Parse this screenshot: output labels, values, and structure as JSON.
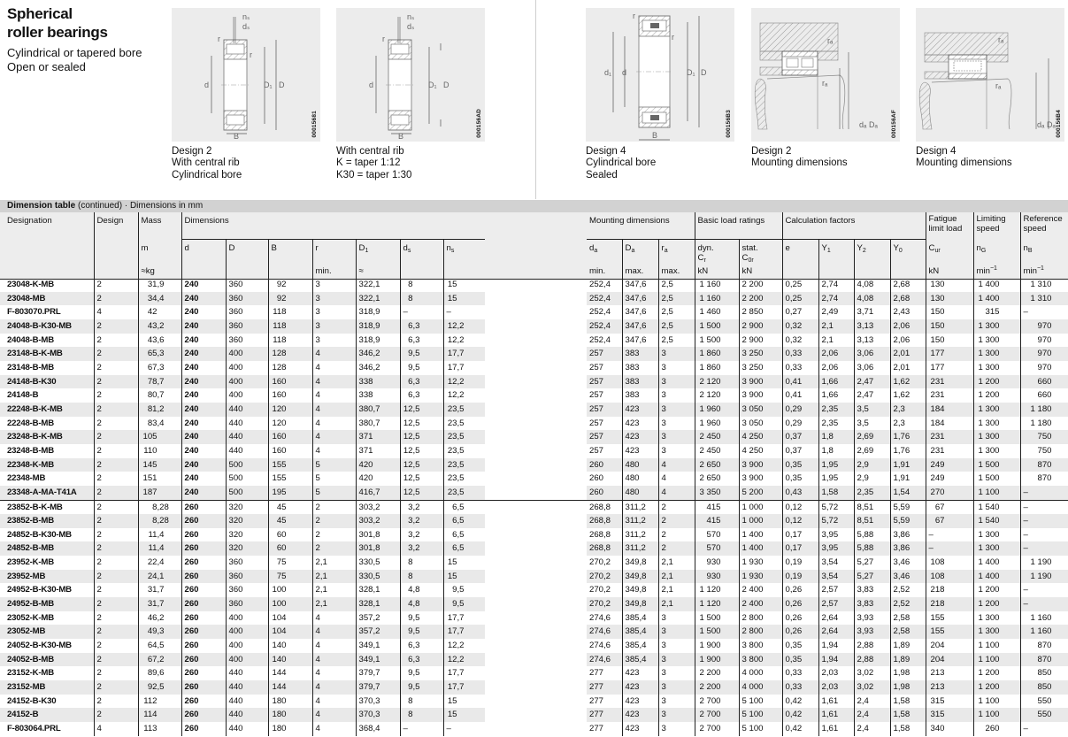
{
  "title": [
    "Spherical",
    "roller bearings"
  ],
  "subtitle": [
    "Cylindrical or tapered bore",
    "Open or sealed"
  ],
  "figures": [
    {
      "code": "00015681",
      "caption": [
        "Design 2",
        "With central rib",
        "Cylindrical bore"
      ],
      "labels": {
        "ns": "nₛ",
        "ds": "dₛ",
        "r": "r",
        "d": "d",
        "D1": "D₁",
        "D": "D",
        "B": "B"
      }
    },
    {
      "code": "000156AD",
      "caption": [
        "With central rib",
        "K = taper 1:12",
        "K30 = taper 1:30"
      ],
      "labels": {
        "ns": "nₛ",
        "ds": "dₛ",
        "r": "r",
        "d": "d",
        "D1": "D₁",
        "D": "D",
        "B": "B"
      }
    },
    {
      "code": "000156B3",
      "caption": [
        "Design 4",
        "Cylindrical bore",
        "Sealed"
      ],
      "labels": {
        "r": "r",
        "d1": "d₁",
        "d": "d",
        "D1": "D₁",
        "D": "D",
        "B": "B"
      }
    },
    {
      "code": "000156AF",
      "caption": [
        "Design 2",
        "Mounting dimensions"
      ],
      "labels": {
        "ra": "rₐ",
        "da": "dₐ",
        "Da": "Dₐ"
      }
    },
    {
      "code": "000156B4",
      "caption": [
        "Design 4",
        "Mounting dimensions"
      ],
      "labels": {
        "ra": "rₐ",
        "da": "dₐ",
        "Da": "Dₐ"
      }
    }
  ],
  "table_title": {
    "bold": "Dimension table",
    "rest": " (continued) · Dimensions in mm"
  },
  "header": {
    "designation": "Designation",
    "design": "Design",
    "mass": "Mass",
    "mass_sym": "m",
    "mass_unit": "≈kg",
    "dimensions": "Dimensions",
    "d": "d",
    "D": "D",
    "B": "B",
    "r": "r",
    "r_unit": "min.",
    "D1": {
      "m": "D",
      "s": "1"
    },
    "D1_unit": "≈",
    "ds": {
      "m": "d",
      "s": "s"
    },
    "ns": {
      "m": "n",
      "s": "s"
    },
    "mounting": "Mounting dimensions",
    "da": {
      "m": "d",
      "s": "a"
    },
    "da_unit": "min.",
    "Da": {
      "m": "D",
      "s": "a"
    },
    "Da_unit": "max.",
    "ra": {
      "m": "r",
      "s": "a"
    },
    "ra_unit": "max.",
    "load": "Basic load ratings",
    "dyn": "dyn.",
    "Cr": {
      "m": "C",
      "s": "r"
    },
    "stat": "stat.",
    "C0r": {
      "m": "C",
      "s": "0r"
    },
    "kN": "kN",
    "calc": "Calculation factors",
    "e": "e",
    "Y1": {
      "m": "Y",
      "s": "1"
    },
    "Y2": {
      "m": "Y",
      "s": "2"
    },
    "Y0": {
      "m": "Y",
      "s": "0"
    },
    "fatigue": "Fatigue limit load",
    "Cur": {
      "m": "C",
      "s": "ur"
    },
    "limiting": "Limiting speed",
    "nG": {
      "m": "n",
      "s": "G"
    },
    "reference": "Reference speed",
    "nB": {
      "m": "n",
      "s": "B"
    },
    "min_unit": {
      "m": "min",
      "s": "−1"
    }
  },
  "rows": [
    [
      "23048-K-MB",
      "2",
      "31,9",
      "240",
      "360",
      "92",
      "3",
      "322,1",
      "8",
      "15",
      "252,4",
      "347,6",
      "2,5",
      "1 160",
      "2 200",
      "0,25",
      "2,74",
      "4,08",
      "2,68",
      "130",
      "1 400",
      "1 310"
    ],
    [
      "23048-MB",
      "2",
      "34,4",
      "240",
      "360",
      "92",
      "3",
      "322,1",
      "8",
      "15",
      "252,4",
      "347,6",
      "2,5",
      "1 160",
      "2 200",
      "0,25",
      "2,74",
      "4,08",
      "2,68",
      "130",
      "1 400",
      "1 310"
    ],
    [
      "F-803070.PRL",
      "4",
      "42",
      "240",
      "360",
      "118",
      "3",
      "318,9",
      "–",
      "–",
      "252,4",
      "347,6",
      "2,5",
      "1 460",
      "2 850",
      "0,27",
      "2,49",
      "3,71",
      "2,43",
      "150",
      "315",
      "–"
    ],
    [
      "24048-B-K30-MB",
      "2",
      "43,2",
      "240",
      "360",
      "118",
      "3",
      "318,9",
      "6,3",
      "12,2",
      "252,4",
      "347,6",
      "2,5",
      "1 500",
      "2 900",
      "0,32",
      "2,1",
      "3,13",
      "2,06",
      "150",
      "1 300",
      "970"
    ],
    [
      "24048-B-MB",
      "2",
      "43,6",
      "240",
      "360",
      "118",
      "3",
      "318,9",
      "6,3",
      "12,2",
      "252,4",
      "347,6",
      "2,5",
      "1 500",
      "2 900",
      "0,32",
      "2,1",
      "3,13",
      "2,06",
      "150",
      "1 300",
      "970"
    ],
    [
      "23148-B-K-MB",
      "2",
      "65,3",
      "240",
      "400",
      "128",
      "4",
      "346,2",
      "9,5",
      "17,7",
      "257",
      "383",
      "3",
      "1 860",
      "3 250",
      "0,33",
      "2,06",
      "3,06",
      "2,01",
      "177",
      "1 300",
      "970"
    ],
    [
      "23148-B-MB",
      "2",
      "67,3",
      "240",
      "400",
      "128",
      "4",
      "346,2",
      "9,5",
      "17,7",
      "257",
      "383",
      "3",
      "1 860",
      "3 250",
      "0,33",
      "2,06",
      "3,06",
      "2,01",
      "177",
      "1 300",
      "970"
    ],
    [
      "24148-B-K30",
      "2",
      "78,7",
      "240",
      "400",
      "160",
      "4",
      "338",
      "6,3",
      "12,2",
      "257",
      "383",
      "3",
      "2 120",
      "3 900",
      "0,41",
      "1,66",
      "2,47",
      "1,62",
      "231",
      "1 200",
      "660"
    ],
    [
      "24148-B",
      "2",
      "80,7",
      "240",
      "400",
      "160",
      "4",
      "338",
      "6,3",
      "12,2",
      "257",
      "383",
      "3",
      "2 120",
      "3 900",
      "0,41",
      "1,66",
      "2,47",
      "1,62",
      "231",
      "1 200",
      "660"
    ],
    [
      "22248-B-K-MB",
      "2",
      "81,2",
      "240",
      "440",
      "120",
      "4",
      "380,7",
      "12,5",
      "23,5",
      "257",
      "423",
      "3",
      "1 960",
      "3 050",
      "0,29",
      "2,35",
      "3,5",
      "2,3",
      "184",
      "1 300",
      "1 180"
    ],
    [
      "22248-B-MB",
      "2",
      "83,4",
      "240",
      "440",
      "120",
      "4",
      "380,7",
      "12,5",
      "23,5",
      "257",
      "423",
      "3",
      "1 960",
      "3 050",
      "0,29",
      "2,35",
      "3,5",
      "2,3",
      "184",
      "1 300",
      "1 180"
    ],
    [
      "23248-B-K-MB",
      "2",
      "105",
      "240",
      "440",
      "160",
      "4",
      "371",
      "12,5",
      "23,5",
      "257",
      "423",
      "3",
      "2 450",
      "4 250",
      "0,37",
      "1,8",
      "2,69",
      "1,76",
      "231",
      "1 300",
      "750"
    ],
    [
      "23248-B-MB",
      "2",
      "110",
      "240",
      "440",
      "160",
      "4",
      "371",
      "12,5",
      "23,5",
      "257",
      "423",
      "3",
      "2 450",
      "4 250",
      "0,37",
      "1,8",
      "2,69",
      "1,76",
      "231",
      "1 300",
      "750"
    ],
    [
      "22348-K-MB",
      "2",
      "145",
      "240",
      "500",
      "155",
      "5",
      "420",
      "12,5",
      "23,5",
      "260",
      "480",
      "4",
      "2 650",
      "3 900",
      "0,35",
      "1,95",
      "2,9",
      "1,91",
      "249",
      "1 500",
      "870"
    ],
    [
      "22348-MB",
      "2",
      "151",
      "240",
      "500",
      "155",
      "5",
      "420",
      "12,5",
      "23,5",
      "260",
      "480",
      "4",
      "2 650",
      "3 900",
      "0,35",
      "1,95",
      "2,9",
      "1,91",
      "249",
      "1 500",
      "870"
    ],
    [
      "23348-A-MA-T41A",
      "2",
      "187",
      "240",
      "500",
      "195",
      "5",
      "416,7",
      "12,5",
      "23,5",
      "260",
      "480",
      "4",
      "3 350",
      "5 200",
      "0,43",
      "1,58",
      "2,35",
      "1,54",
      "270",
      "1 100",
      "–"
    ],
    [
      "23852-B-K-MB",
      "2",
      "8,28",
      "260",
      "320",
      "45",
      "2",
      "303,2",
      "3,2",
      "6,5",
      "268,8",
      "311,2",
      "2",
      "415",
      "1 000",
      "0,12",
      "5,72",
      "8,51",
      "5,59",
      "67",
      "1 540",
      "–"
    ],
    [
      "23852-B-MB",
      "2",
      "8,28",
      "260",
      "320",
      "45",
      "2",
      "303,2",
      "3,2",
      "6,5",
      "268,8",
      "311,2",
      "2",
      "415",
      "1 000",
      "0,12",
      "5,72",
      "8,51",
      "5,59",
      "67",
      "1 540",
      "–"
    ],
    [
      "24852-B-K30-MB",
      "2",
      "11,4",
      "260",
      "320",
      "60",
      "2",
      "301,8",
      "3,2",
      "6,5",
      "268,8",
      "311,2",
      "2",
      "570",
      "1 400",
      "0,17",
      "3,95",
      "5,88",
      "3,86",
      "–",
      "1 300",
      "–"
    ],
    [
      "24852-B-MB",
      "2",
      "11,4",
      "260",
      "320",
      "60",
      "2",
      "301,8",
      "3,2",
      "6,5",
      "268,8",
      "311,2",
      "2",
      "570",
      "1 400",
      "0,17",
      "3,95",
      "5,88",
      "3,86",
      "–",
      "1 300",
      "–"
    ],
    [
      "23952-K-MB",
      "2",
      "22,4",
      "260",
      "360",
      "75",
      "2,1",
      "330,5",
      "8",
      "15",
      "270,2",
      "349,8",
      "2,1",
      "930",
      "1 930",
      "0,19",
      "3,54",
      "5,27",
      "3,46",
      "108",
      "1 400",
      "1 190"
    ],
    [
      "23952-MB",
      "2",
      "24,1",
      "260",
      "360",
      "75",
      "2,1",
      "330,5",
      "8",
      "15",
      "270,2",
      "349,8",
      "2,1",
      "930",
      "1 930",
      "0,19",
      "3,54",
      "5,27",
      "3,46",
      "108",
      "1 400",
      "1 190"
    ],
    [
      "24952-B-K30-MB",
      "2",
      "31,7",
      "260",
      "360",
      "100",
      "2,1",
      "328,1",
      "4,8",
      "9,5",
      "270,2",
      "349,8",
      "2,1",
      "1 120",
      "2 400",
      "0,26",
      "2,57",
      "3,83",
      "2,52",
      "218",
      "1 200",
      "–"
    ],
    [
      "24952-B-MB",
      "2",
      "31,7",
      "260",
      "360",
      "100",
      "2,1",
      "328,1",
      "4,8",
      "9,5",
      "270,2",
      "349,8",
      "2,1",
      "1 120",
      "2 400",
      "0,26",
      "2,57",
      "3,83",
      "2,52",
      "218",
      "1 200",
      "–"
    ],
    [
      "23052-K-MB",
      "2",
      "46,2",
      "260",
      "400",
      "104",
      "4",
      "357,2",
      "9,5",
      "17,7",
      "274,6",
      "385,4",
      "3",
      "1 500",
      "2 800",
      "0,26",
      "2,64",
      "3,93",
      "2,58",
      "155",
      "1 300",
      "1 160"
    ],
    [
      "23052-MB",
      "2",
      "49,3",
      "260",
      "400",
      "104",
      "4",
      "357,2",
      "9,5",
      "17,7",
      "274,6",
      "385,4",
      "3",
      "1 500",
      "2 800",
      "0,26",
      "2,64",
      "3,93",
      "2,58",
      "155",
      "1 300",
      "1 160"
    ],
    [
      "24052-B-K30-MB",
      "2",
      "64,5",
      "260",
      "400",
      "140",
      "4",
      "349,1",
      "6,3",
      "12,2",
      "274,6",
      "385,4",
      "3",
      "1 900",
      "3 800",
      "0,35",
      "1,94",
      "2,88",
      "1,89",
      "204",
      "1 100",
      "870"
    ],
    [
      "24052-B-MB",
      "2",
      "67,2",
      "260",
      "400",
      "140",
      "4",
      "349,1",
      "6,3",
      "12,2",
      "274,6",
      "385,4",
      "3",
      "1 900",
      "3 800",
      "0,35",
      "1,94",
      "2,88",
      "1,89",
      "204",
      "1 100",
      "870"
    ],
    [
      "23152-K-MB",
      "2",
      "89,6",
      "260",
      "440",
      "144",
      "4",
      "379,7",
      "9,5",
      "17,7",
      "277",
      "423",
      "3",
      "2 200",
      "4 000",
      "0,33",
      "2,03",
      "3,02",
      "1,98",
      "213",
      "1 200",
      "850"
    ],
    [
      "23152-MB",
      "2",
      "92,5",
      "260",
      "440",
      "144",
      "4",
      "379,7",
      "9,5",
      "17,7",
      "277",
      "423",
      "3",
      "2 200",
      "4 000",
      "0,33",
      "2,03",
      "3,02",
      "1,98",
      "213",
      "1 200",
      "850"
    ],
    [
      "24152-B-K30",
      "2",
      "112",
      "260",
      "440",
      "180",
      "4",
      "370,3",
      "8",
      "15",
      "277",
      "423",
      "3",
      "2 700",
      "5 100",
      "0,42",
      "1,61",
      "2,4",
      "1,58",
      "315",
      "1 100",
      "550"
    ],
    [
      "24152-B",
      "2",
      "114",
      "260",
      "440",
      "180",
      "4",
      "370,3",
      "8",
      "15",
      "277",
      "423",
      "3",
      "2 700",
      "5 100",
      "0,42",
      "1,61",
      "2,4",
      "1,58",
      "315",
      "1 100",
      "550"
    ],
    [
      "F-803064.PRL",
      "4",
      "113",
      "260",
      "440",
      "180",
      "4",
      "368,4",
      "–",
      "–",
      "277",
      "423",
      "3",
      "2 700",
      "5 100",
      "0,42",
      "1,61",
      "2,4",
      "1,58",
      "340",
      "260",
      "–"
    ]
  ]
}
